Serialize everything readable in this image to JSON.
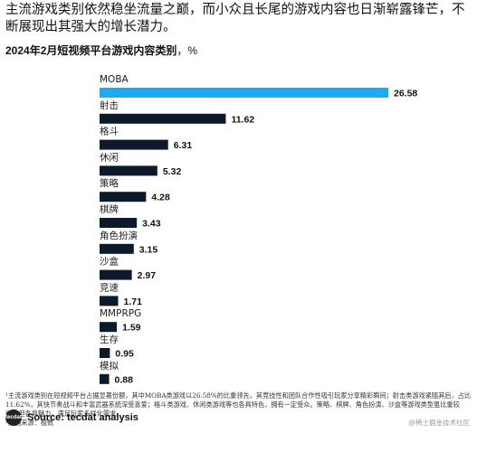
{
  "headline": "主流游戏类别依然稳坐流量之巅，而小众且长尾的游戏内容也日渐崭露锋芒，不断展现出其强大的增长潜力。",
  "subtitle": "2024年2月短视频平台游戏内容类别",
  "unit": "，%",
  "chart_data": {
    "type": "bar",
    "orientation": "horizontal",
    "title": "2024年2月短视频平台游戏内容类别",
    "unit": "%",
    "categories": [
      "MOBA",
      "射击",
      "格斗",
      "休闲",
      "策略",
      "棋牌",
      "角色扮演",
      "沙盒",
      "竞速",
      "MMPRPG",
      "生存",
      "模拟"
    ],
    "values": [
      26.58,
      11.62,
      6.31,
      5.32,
      4.28,
      3.43,
      3.15,
      2.97,
      1.71,
      1.59,
      0.95,
      0.88
    ],
    "value_labels": [
      "26.58",
      "11.62",
      "6.31",
      "5.32",
      "4.28",
      "3.43",
      "3.15",
      "2.97",
      "1.71",
      "1.59",
      "0.95",
      "0.88"
    ],
    "highlight_color": "#1eaaf1",
    "bar_color": "#0d1a2c",
    "xlim": [
      0,
      26.58
    ],
    "grid": false,
    "axis_labels_shown": false
  },
  "footnotes": [
    "¹主流游戏类别在短视频平台占据显著份额，其中MOBA类游戏以26.58%的比重领先，其竞技性和团队合作性吸引玩家分享精彩瞬间；射击类游戏紧随其后，占比11.62%，其快节奏战斗和丰富武器系统深受喜爱；格斗类游戏、休闲类游戏等也各具特色，拥有一定受众。策略、棋牌、角色扮演、沙盒等游戏类型虽比重较低，但各具魅力，满足玩家多样化需求。",
    "²数据来源：极数"
  ],
  "source": "Source: tecdat analysis",
  "logo_text": "tecdat",
  "watermark": "@稀土掘金技术社区"
}
